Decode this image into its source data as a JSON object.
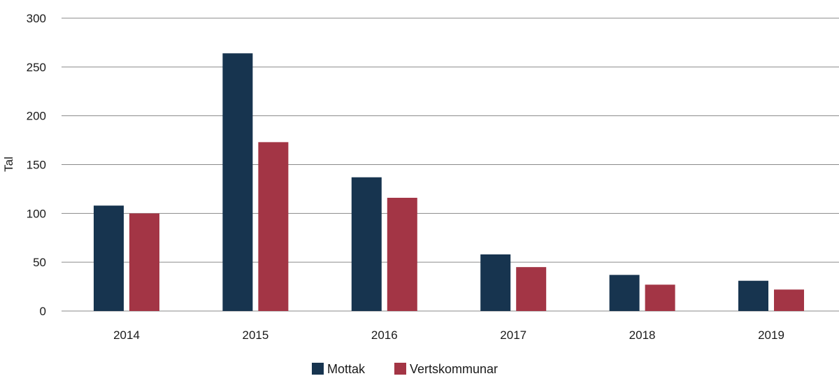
{
  "chart_data": {
    "type": "bar",
    "title": "",
    "xlabel": "",
    "ylabel": "Tal",
    "ylim": [
      0,
      300
    ],
    "yticks": [
      0,
      50,
      100,
      150,
      200,
      250,
      300
    ],
    "grid": true,
    "legend_position": "bottom-center",
    "categories": [
      "2014",
      "2015",
      "2016",
      "2017",
      "2018",
      "2019"
    ],
    "series": [
      {
        "name": "Mottak",
        "color": "#17344f",
        "values": [
          108,
          264,
          137,
          58,
          37,
          31
        ]
      },
      {
        "name": "Vertskommunar",
        "color": "#a33545",
        "values": [
          100,
          173,
          116,
          45,
          27,
          22
        ]
      }
    ]
  }
}
